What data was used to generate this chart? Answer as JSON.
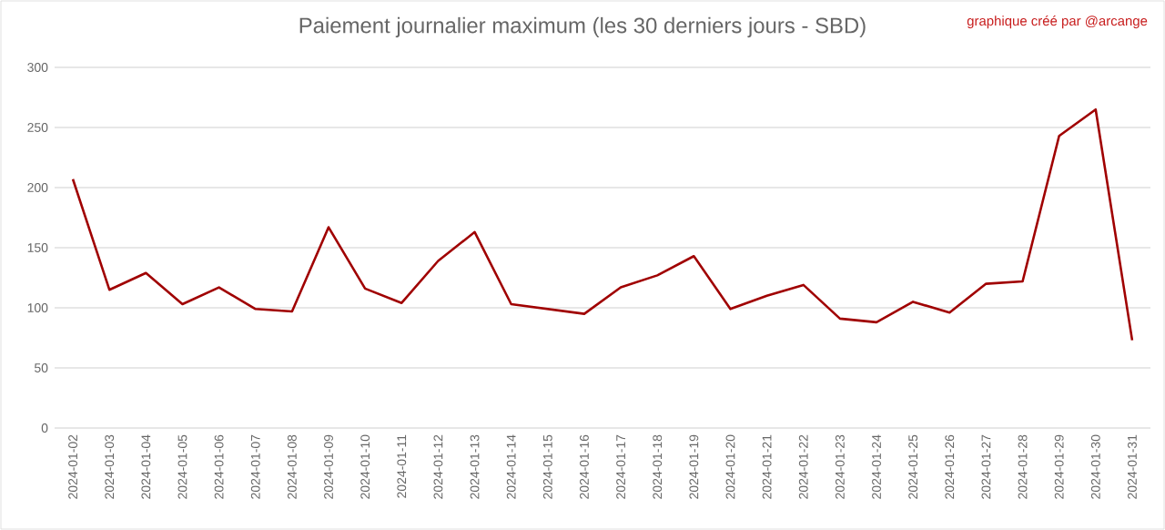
{
  "chart_data": {
    "type": "line",
    "title": "Paiement journalier maximum (les 30 derniers jours - SBD)",
    "annotations": [
      "graphique créé par @arcange"
    ],
    "categories": [
      "2024-01-02",
      "2024-01-03",
      "2024-01-04",
      "2024-01-05",
      "2024-01-06",
      "2024-01-07",
      "2024-01-08",
      "2024-01-09",
      "2024-01-10",
      "2024-01-11",
      "2024-01-12",
      "2024-01-13",
      "2024-01-14",
      "2024-01-15",
      "2024-01-16",
      "2024-01-17",
      "2024-01-18",
      "2024-01-19",
      "2024-01-20",
      "2024-01-21",
      "2024-01-22",
      "2024-01-23",
      "2024-01-24",
      "2024-01-25",
      "2024-01-26",
      "2024-01-27",
      "2024-01-28",
      "2024-01-29",
      "2024-01-30",
      "2024-01-31"
    ],
    "series": [
      {
        "color": "#a00000",
        "values": [
          207,
          115,
          129,
          103,
          117,
          99,
          97,
          167,
          116,
          104,
          139,
          163,
          103,
          99,
          95,
          117,
          127,
          143,
          99,
          110,
          119,
          91,
          88,
          105,
          96,
          120,
          122,
          243,
          265,
          73
        ]
      }
    ],
    "ylim": [
      0,
      300
    ],
    "yticks": [
      0,
      50,
      100,
      150,
      200,
      250,
      300
    ],
    "grid": "y",
    "marker": "none",
    "line_style": "solid"
  }
}
